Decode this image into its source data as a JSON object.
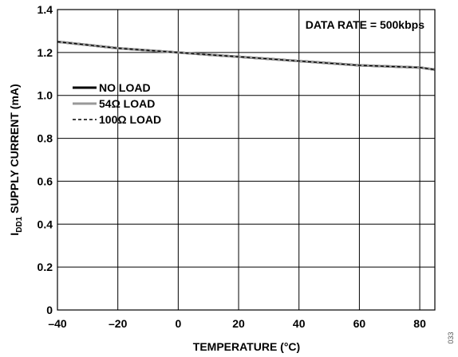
{
  "chart_data": {
    "type": "line",
    "xlabel": "TEMPERATURE (°C)",
    "ylabel": {
      "prefix": "I",
      "subscript": "DD1",
      "suffix": " SUPPLY CURRENT (mA)"
    },
    "xlim": [
      -40,
      85
    ],
    "ylim": [
      0,
      1.4
    ],
    "x_ticks": [
      -40,
      -20,
      0,
      20,
      40,
      60,
      80
    ],
    "x_tick_labels": [
      "–40",
      "–20",
      "0",
      "20",
      "40",
      "60",
      "80"
    ],
    "y_ticks": [
      0,
      0.2,
      0.4,
      0.6,
      0.8,
      1.0,
      1.2,
      1.4
    ],
    "y_tick_labels": [
      "0",
      "0.2",
      "0.4",
      "0.6",
      "0.8",
      "1.0",
      "1.2",
      "1.4"
    ],
    "grid": true,
    "legend_position": "upper-left",
    "annotation": "DATA RATE = 500kbps",
    "figure_id": "033",
    "series": [
      {
        "name": "NO LOAD",
        "color": "#000000",
        "style": "solid",
        "x": [
          -40,
          -30,
          -20,
          -10,
          0,
          10,
          20,
          30,
          40,
          50,
          60,
          70,
          80,
          85
        ],
        "y": [
          1.25,
          1.235,
          1.22,
          1.21,
          1.2,
          1.19,
          1.18,
          1.17,
          1.16,
          1.15,
          1.14,
          1.135,
          1.13,
          1.12
        ]
      },
      {
        "name": "54Ω LOAD",
        "color": "#999999",
        "style": "solid",
        "x": [
          -40,
          -30,
          -20,
          -10,
          0,
          10,
          20,
          30,
          40,
          50,
          60,
          70,
          80,
          85
        ],
        "y": [
          1.25,
          1.235,
          1.22,
          1.21,
          1.2,
          1.19,
          1.18,
          1.17,
          1.16,
          1.15,
          1.14,
          1.135,
          1.13,
          1.12
        ]
      },
      {
        "name": "100Ω LOAD",
        "color": "#000000",
        "style": "dashed",
        "x": [
          -40,
          -30,
          -20,
          -10,
          0,
          10,
          20,
          30,
          40,
          50,
          60,
          70,
          80,
          85
        ],
        "y": [
          1.25,
          1.235,
          1.22,
          1.21,
          1.2,
          1.19,
          1.18,
          1.17,
          1.16,
          1.15,
          1.14,
          1.135,
          1.13,
          1.12
        ]
      }
    ]
  }
}
